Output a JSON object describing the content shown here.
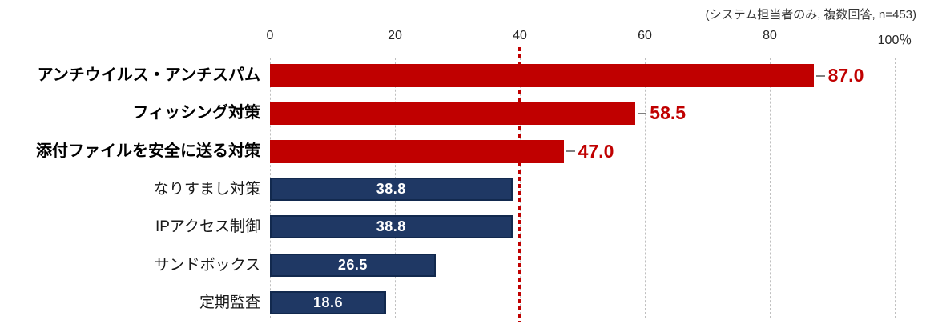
{
  "annotation": "(システム担当者のみ, 複数回答, n=453)",
  "chart_data": {
    "type": "bar",
    "orientation": "horizontal",
    "title": "",
    "categories": [
      "アンチウイルス・アンチスパム",
      "フィッシング対策",
      "添付ファイルを安全に送る対策",
      "なりすまし対策",
      "IPアクセス制御",
      "サンドボックス",
      "定期監査"
    ],
    "values": [
      87.0,
      58.5,
      47.0,
      38.8,
      38.8,
      26.5,
      18.6
    ],
    "value_labels": [
      "87.0",
      "58.5",
      "47.0",
      "38.8",
      "38.8",
      "26.5",
      "18.6"
    ],
    "bar_styles": [
      "highlight",
      "highlight",
      "highlight",
      "normal",
      "normal",
      "normal",
      "normal"
    ],
    "xlim": [
      0,
      100
    ],
    "x_ticks": [
      0,
      20,
      40,
      60,
      80,
      100
    ],
    "x_tick_labels": [
      "0",
      "20",
      "40",
      "60",
      "80",
      "100％"
    ],
    "reference_line_x": 40,
    "grid": "dashed-vertical",
    "legend": "none",
    "colors": {
      "highlight_bar": "#c00000",
      "normal_bar": "#1f3864",
      "normal_bar_border": "#12294e",
      "value_text_highlight": "#c00000",
      "value_text_normal": "#ffffff",
      "gridline": "#bfbfbf",
      "reference_line": "#c00000",
      "leader_line": "#7f7f7f",
      "annotation_text": "#333333"
    }
  }
}
